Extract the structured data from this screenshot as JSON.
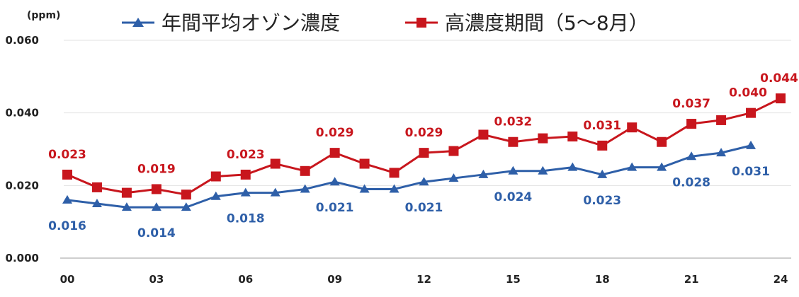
{
  "chart_data": {
    "type": "line",
    "unit_label": "(ppm)",
    "x": [
      0,
      1,
      2,
      3,
      4,
      5,
      6,
      7,
      8,
      9,
      10,
      11,
      12,
      13,
      14,
      15,
      16,
      17,
      18,
      19,
      20,
      21,
      22,
      23,
      24
    ],
    "x_ticks": [
      {
        "value": 0,
        "label": "00"
      },
      {
        "value": 3,
        "label": "03"
      },
      {
        "value": 6,
        "label": "06"
      },
      {
        "value": 9,
        "label": "09"
      },
      {
        "value": 12,
        "label": "12"
      },
      {
        "value": 15,
        "label": "15"
      },
      {
        "value": 18,
        "label": "18"
      },
      {
        "value": 21,
        "label": "21"
      },
      {
        "value": 24,
        "label": "24"
      }
    ],
    "y_ticks": [
      {
        "value": 0.0,
        "label": "0.000"
      },
      {
        "value": 0.02,
        "label": "0.020"
      },
      {
        "value": 0.04,
        "label": "0.040"
      },
      {
        "value": 0.06,
        "label": "0.060"
      }
    ],
    "xlim": [
      0,
      24
    ],
    "ylim": [
      0,
      0.06
    ],
    "grid": "horizontal",
    "legend_position": "top",
    "series": [
      {
        "name": "年間平均オゾン濃度",
        "color": "#2E5FA8",
        "marker": "triangle",
        "x": [
          0,
          1,
          2,
          3,
          4,
          5,
          6,
          7,
          8,
          9,
          10,
          11,
          12,
          13,
          14,
          15,
          16,
          17,
          18,
          19,
          20,
          21,
          22,
          23
        ],
        "values": [
          0.016,
          0.015,
          0.014,
          0.014,
          0.014,
          0.017,
          0.018,
          0.018,
          0.019,
          0.021,
          0.019,
          0.019,
          0.021,
          0.022,
          0.023,
          0.024,
          0.024,
          0.025,
          0.023,
          0.025,
          0.025,
          0.028,
          0.029,
          0.031
        ],
        "data_labels": [
          {
            "x": 0,
            "text": "0.016"
          },
          {
            "x": 3,
            "text": "0.014"
          },
          {
            "x": 6,
            "text": "0.018"
          },
          {
            "x": 9,
            "text": "0.021"
          },
          {
            "x": 12,
            "text": "0.021"
          },
          {
            "x": 15,
            "text": "0.024"
          },
          {
            "x": 18,
            "text": "0.023"
          },
          {
            "x": 21,
            "text": "0.028"
          },
          {
            "x": 23,
            "text": "0.031"
          }
        ]
      },
      {
        "name": "高濃度期間（5～8月）",
        "color": "#C8161D",
        "marker": "square",
        "x": [
          0,
          1,
          2,
          3,
          4,
          5,
          6,
          7,
          8,
          9,
          10,
          11,
          12,
          13,
          14,
          15,
          16,
          17,
          18,
          19,
          20,
          21,
          22,
          23,
          24
        ],
        "values": [
          0.023,
          0.0195,
          0.018,
          0.019,
          0.0175,
          0.0225,
          0.023,
          0.026,
          0.024,
          0.029,
          0.026,
          0.0235,
          0.029,
          0.0295,
          0.034,
          0.032,
          0.033,
          0.0335,
          0.031,
          0.036,
          0.032,
          0.037,
          0.038,
          0.04,
          0.044
        ],
        "data_labels": [
          {
            "x": 0,
            "text": "0.023"
          },
          {
            "x": 3,
            "text": "0.019"
          },
          {
            "x": 6,
            "text": "0.023"
          },
          {
            "x": 9,
            "text": "0.029"
          },
          {
            "x": 12,
            "text": "0.029"
          },
          {
            "x": 15,
            "text": "0.032"
          },
          {
            "x": 18,
            "text": "0.031"
          },
          {
            "x": 21,
            "text": "0.037"
          },
          {
            "x": 23,
            "text": "0.040"
          },
          {
            "x": 24,
            "text": "0.044"
          }
        ]
      }
    ]
  }
}
